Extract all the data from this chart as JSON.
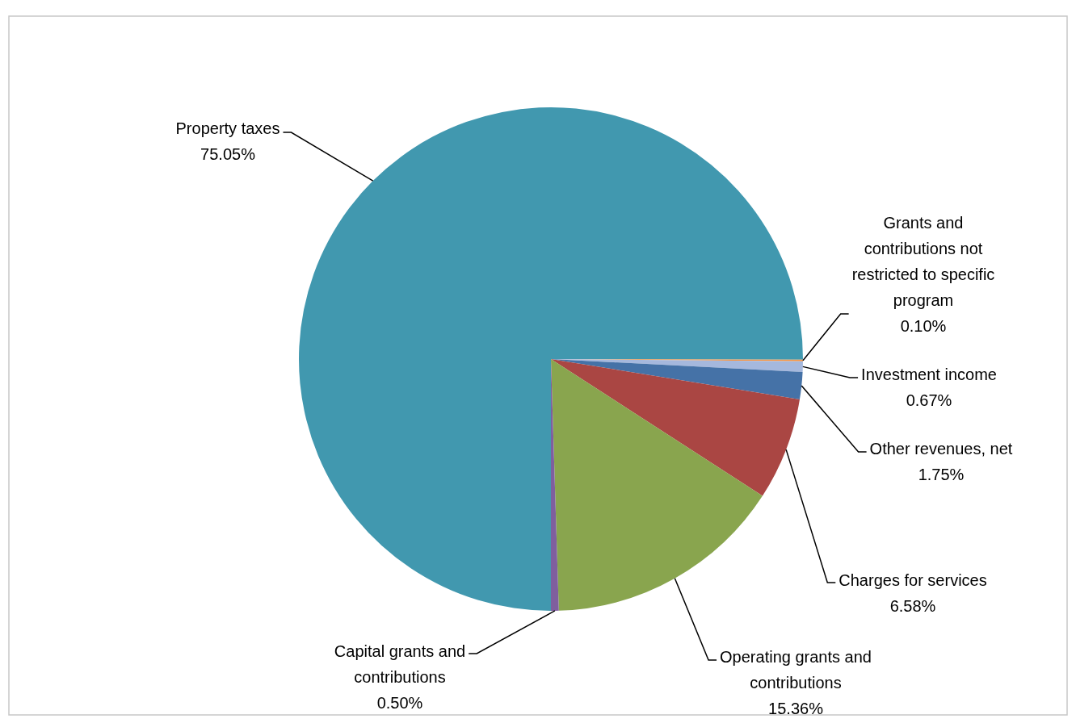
{
  "chart_data": {
    "type": "pie",
    "categories": [
      "Property taxes",
      "Grants and contributions not restricted to specific program",
      "Investment income",
      "Other revenues, net",
      "Charges for services",
      "Operating grants and contributions",
      "Capital grants and contributions"
    ],
    "values": [
      75.05,
      0.1,
      0.67,
      1.75,
      6.58,
      15.36,
      0.5
    ],
    "value_labels": [
      "75.05%",
      "0.10%",
      "0.67%",
      "1.75%",
      "6.58%",
      "15.36%",
      "0.50%"
    ],
    "colors": [
      "#4198af",
      "#f79646",
      "#a5b8dd",
      "#4572a7",
      "#aa4643",
      "#89a54e",
      "#7f5f9e"
    ],
    "legend": false
  }
}
